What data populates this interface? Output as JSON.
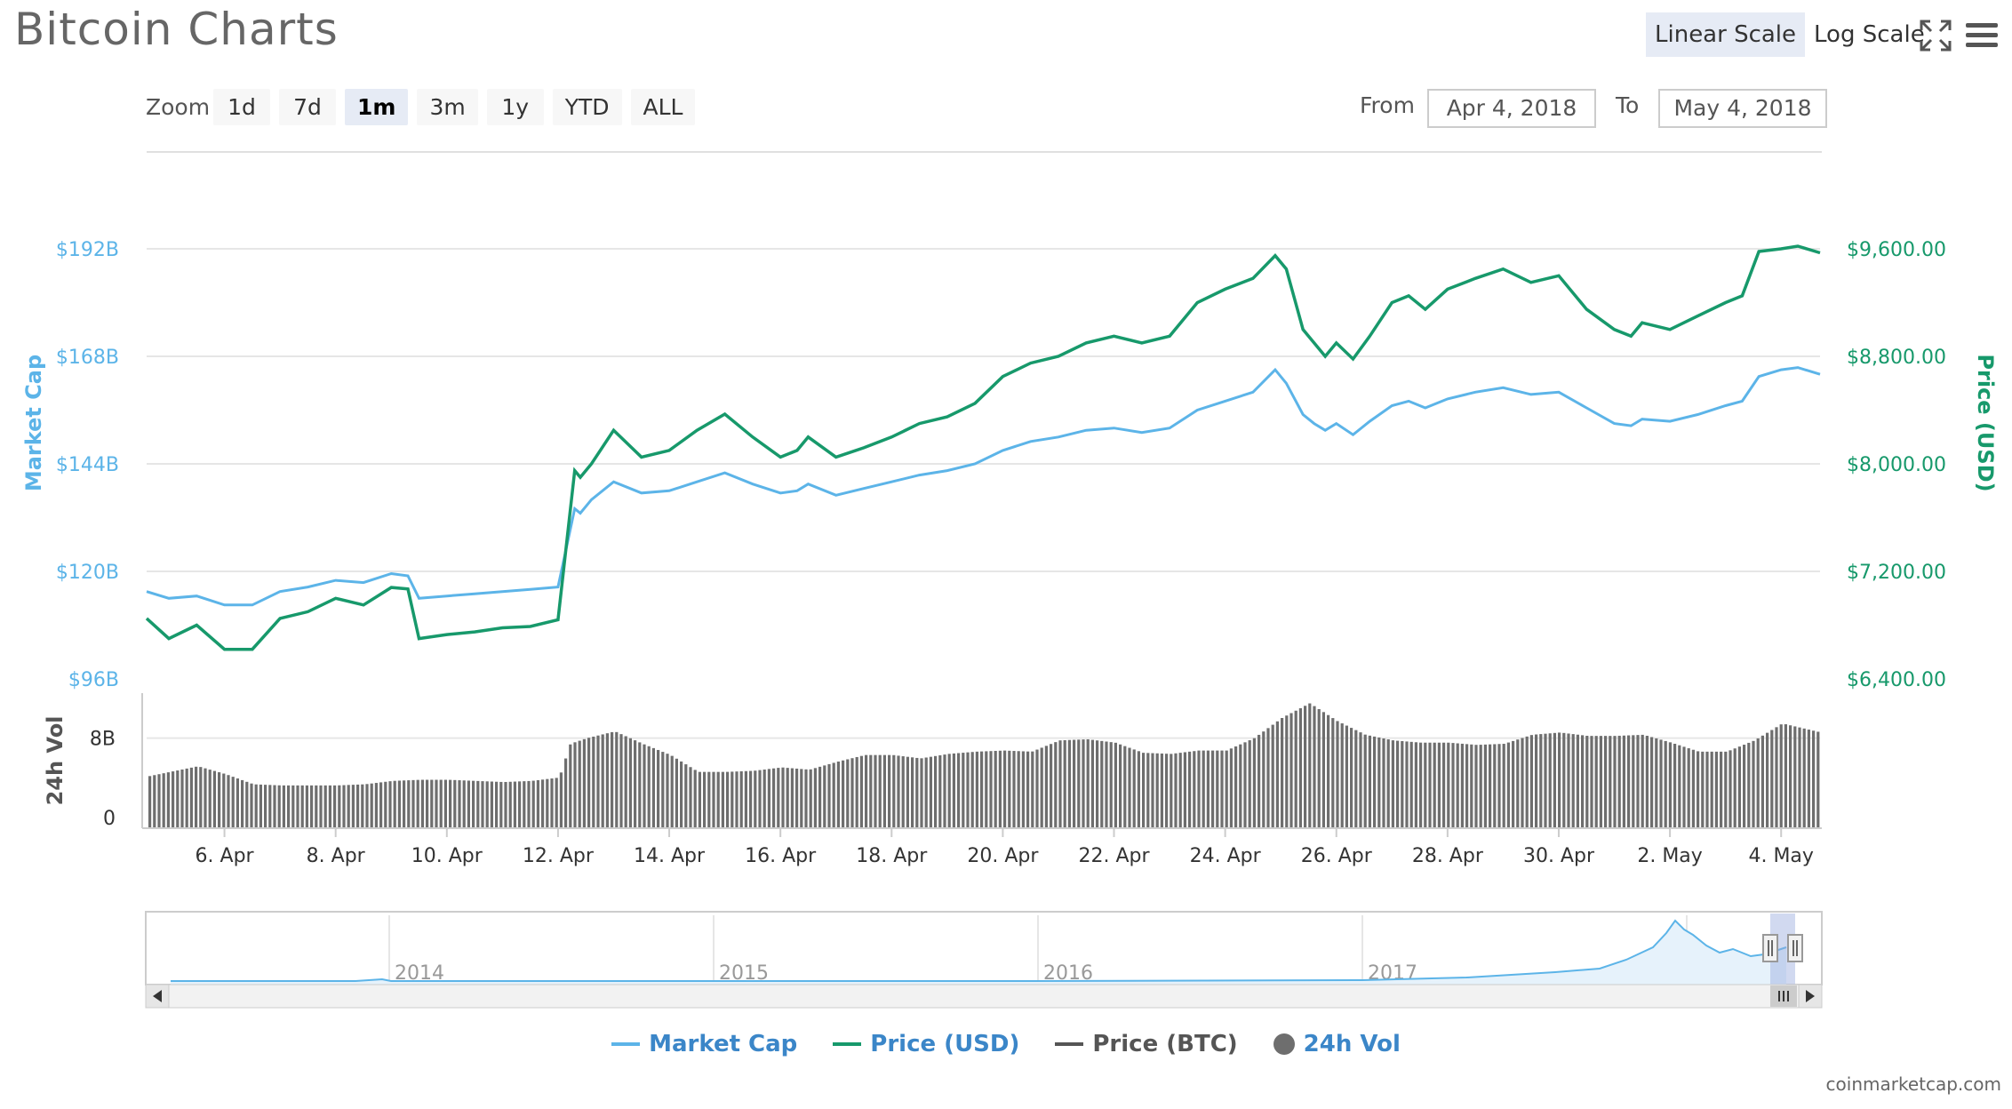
{
  "header": {
    "title": "Bitcoin Charts",
    "linear_scale": "Linear Scale",
    "log_scale": "Log Scale"
  },
  "zoom": {
    "label": "Zoom",
    "buttons": [
      "1d",
      "7d",
      "1m",
      "3m",
      "1y",
      "YTD",
      "ALL"
    ],
    "active": "1m"
  },
  "range": {
    "from_label": "From",
    "from_value": "Apr 4, 2018",
    "to_label": "To",
    "to_value": "May 4, 2018"
  },
  "legend": {
    "market_cap": "Market Cap",
    "price_usd": "Price (USD)",
    "price_btc": "Price (BTC)",
    "vol": "24h Vol"
  },
  "credits": "coinmarketcap.com",
  "colors": {
    "market_cap": "#5cb4e8",
    "price_usd": "#17996b",
    "price_btc": "#555555",
    "vol": "#6e6e6e"
  },
  "chart_data": {
    "type": "line",
    "left_axis": {
      "label": "Market Cap",
      "ticks": [
        "$96B",
        "$120B",
        "$144B",
        "$168B",
        "$192B"
      ],
      "range": [
        96,
        192
      ]
    },
    "right_axis": {
      "label": "Price (USD)",
      "ticks": [
        "$6,400.00",
        "$7,200.00",
        "$8,000.00",
        "$8,800.00",
        "$9,600.00"
      ],
      "range": [
        6400,
        9600
      ]
    },
    "vol_axis": {
      "label": "24h Vol",
      "ticks": [
        "0",
        "8B"
      ]
    },
    "x_ticks": [
      "6. Apr",
      "8. Apr",
      "10. Apr",
      "12. Apr",
      "14. Apr",
      "16. Apr",
      "18. Apr",
      "20. Apr",
      "22. Apr",
      "24. Apr",
      "26. Apr",
      "28. Apr",
      "30. Apr",
      "2. May",
      "4. May"
    ],
    "x_range": [
      4.6,
      34.7
    ],
    "series": [
      {
        "name": "Price (USD)",
        "x": [
          4.6,
          5.0,
          5.5,
          6.0,
          6.5,
          7.0,
          7.5,
          8.0,
          8.5,
          9.0,
          9.3,
          9.5,
          10.0,
          10.5,
          11.0,
          11.5,
          12.0,
          12.3,
          12.4,
          12.6,
          13.0,
          13.5,
          14.0,
          14.5,
          15.0,
          15.5,
          16.0,
          16.3,
          16.5,
          17.0,
          17.5,
          18.0,
          18.5,
          19.0,
          19.5,
          20.0,
          20.5,
          21.0,
          21.5,
          22.0,
          22.5,
          23.0,
          23.5,
          24.0,
          24.5,
          24.9,
          25.1,
          25.4,
          25.6,
          25.8,
          26.0,
          26.3,
          26.6,
          27.0,
          27.3,
          27.6,
          28.0,
          28.5,
          29.0,
          29.5,
          30.0,
          30.5,
          31.0,
          31.3,
          31.5,
          32.0,
          32.5,
          33.0,
          33.3,
          33.6,
          34.0,
          34.3,
          34.7
        ],
        "values": [
          6850,
          6700,
          6800,
          6620,
          6620,
          6850,
          6900,
          7000,
          6950,
          7080,
          7070,
          6700,
          6730,
          6750,
          6780,
          6790,
          6840,
          7950,
          7900,
          8000,
          8250,
          8050,
          8100,
          8250,
          8370,
          8200,
          8050,
          8100,
          8200,
          8050,
          8120,
          8200,
          8300,
          8350,
          8450,
          8650,
          8750,
          8800,
          8900,
          8950,
          8900,
          8950,
          9200,
          9300,
          9380,
          9550,
          9450,
          9000,
          8900,
          8800,
          8900,
          8780,
          8950,
          9200,
          9250,
          9150,
          9300,
          9380,
          9450,
          9350,
          9400,
          9150,
          9000,
          8950,
          9050,
          9000,
          9100,
          9200,
          9250,
          9580,
          9600,
          9620,
          9570
        ]
      },
      {
        "name": "Market Cap",
        "x": [
          4.6,
          5.0,
          5.5,
          6.0,
          6.5,
          7.0,
          7.5,
          8.0,
          8.5,
          9.0,
          9.3,
          9.5,
          10.0,
          10.5,
          11.0,
          11.5,
          12.0,
          12.3,
          12.4,
          12.6,
          13.0,
          13.5,
          14.0,
          14.5,
          15.0,
          15.5,
          16.0,
          16.3,
          16.5,
          17.0,
          17.5,
          18.0,
          18.5,
          19.0,
          19.5,
          20.0,
          20.5,
          21.0,
          21.5,
          22.0,
          22.5,
          23.0,
          23.5,
          24.0,
          24.5,
          24.9,
          25.1,
          25.4,
          25.6,
          25.8,
          26.0,
          26.3,
          26.6,
          27.0,
          27.3,
          27.6,
          28.0,
          28.5,
          29.0,
          29.5,
          30.0,
          30.5,
          31.0,
          31.3,
          31.5,
          32.0,
          32.5,
          33.0,
          33.3,
          33.6,
          34.0,
          34.3,
          34.7
        ],
        "values": [
          115.5,
          114,
          114.5,
          112.5,
          112.5,
          115.5,
          116.5,
          118,
          117.5,
          119.5,
          119,
          114,
          114.5,
          115,
          115.5,
          116,
          116.5,
          134,
          133,
          136,
          140,
          137.5,
          138,
          140,
          142,
          139.5,
          137.5,
          138,
          139.5,
          137,
          138.5,
          140,
          141.5,
          142.5,
          144,
          147,
          149,
          150,
          151.5,
          152,
          151,
          152,
          156,
          158,
          160,
          165,
          162,
          155,
          153,
          151.5,
          153,
          150.5,
          153.5,
          157,
          158,
          156.5,
          158.5,
          160,
          161,
          159.5,
          160,
          156.5,
          153,
          152.5,
          154,
          153.5,
          155,
          157,
          158,
          163.5,
          165,
          165.5,
          164
        ]
      }
    ],
    "volume": {
      "x": [
        4.6,
        5.0,
        5.5,
        6.0,
        6.5,
        7.0,
        7.5,
        8.0,
        8.5,
        9.0,
        9.5,
        10.0,
        10.5,
        11.0,
        11.5,
        12.0,
        12.2,
        12.5,
        13.0,
        13.5,
        14.0,
        14.5,
        15.0,
        15.5,
        16.0,
        16.5,
        17.0,
        17.5,
        18.0,
        18.5,
        19.0,
        19.5,
        20.0,
        20.5,
        21.0,
        21.5,
        22.0,
        22.5,
        23.0,
        23.5,
        24.0,
        24.5,
        25.0,
        25.5,
        26.0,
        26.5,
        27.0,
        27.5,
        28.0,
        28.5,
        29.0,
        29.5,
        30.0,
        30.5,
        31.0,
        31.5,
        32.0,
        32.5,
        33.0,
        33.5,
        34.0,
        34.7
      ],
      "values": [
        4.6,
        5.0,
        5.5,
        4.8,
        3.9,
        3.8,
        3.8,
        3.8,
        3.9,
        4.2,
        4.3,
        4.3,
        4.2,
        4.1,
        4.2,
        4.5,
        7.5,
        8.0,
        8.6,
        7.5,
        6.5,
        5.0,
        5.0,
        5.1,
        5.4,
        5.2,
        5.9,
        6.5,
        6.5,
        6.2,
        6.6,
        6.8,
        6.9,
        6.8,
        7.8,
        7.9,
        7.6,
        6.7,
        6.6,
        6.9,
        6.9,
        8.0,
        9.8,
        11.1,
        9.5,
        8.3,
        7.8,
        7.6,
        7.6,
        7.4,
        7.5,
        8.3,
        8.5,
        8.2,
        8.2,
        8.3,
        7.6,
        6.8,
        6.8,
        7.8,
        9.3,
        8.5
      ]
    }
  }
}
